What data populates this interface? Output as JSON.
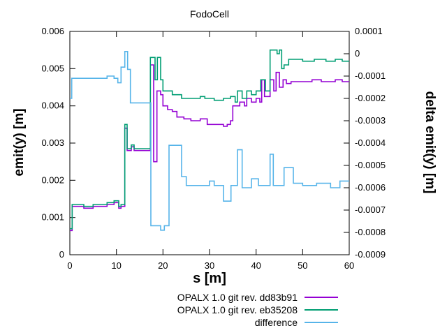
{
  "chart_data": {
    "type": "line",
    "title": "FodoCell",
    "xlabel": "s [m]",
    "ylabel_left": "emit(y) [m]",
    "ylabel_right": "delta emit(y) [m]",
    "x_range": [
      0,
      60
    ],
    "y_left_range": [
      0,
      0.006
    ],
    "y_right_range": [
      -0.0009,
      0.0001
    ],
    "grid": false,
    "legend_position": "bottom-center",
    "step_mode": "step-after",
    "x_tick_values": [
      0,
      10,
      20,
      30,
      40,
      50,
      60
    ],
    "x_tick_labels": [
      "0",
      "10",
      "20",
      "30",
      "40",
      "50",
      "60"
    ],
    "y_left_tick_values": [
      0,
      0.001,
      0.002,
      0.003,
      0.004,
      0.005,
      0.006
    ],
    "y_left_tick_labels": [
      "0",
      "0.001",
      "0.002",
      "0.003",
      "0.004",
      "0.005",
      "0.006"
    ],
    "y_right_tick_values": [
      0.0001,
      0,
      -0.0001,
      -0.0002,
      -0.0003,
      -0.0004,
      -0.0005,
      -0.0006,
      -0.0007,
      -0.0008,
      -0.0009
    ],
    "y_right_tick_labels": [
      "0.0001",
      "0",
      "-0.0001",
      "-0.0002",
      "-0.0003",
      "-0.0004",
      "-0.0005",
      "-0.0006",
      "-0.0007",
      "-0.0008",
      "-0.0009"
    ],
    "series": [
      {
        "name": "OPALX 1.0 git rev. dd83b91",
        "color": "#9400d3",
        "axis": "left",
        "points": [
          [
            0,
            0.00065
          ],
          [
            0.5,
            0.0013
          ],
          [
            3,
            0.00125
          ],
          [
            5,
            0.0013
          ],
          [
            8,
            0.00135
          ],
          [
            9.5,
            0.0014
          ],
          [
            10.5,
            0.00125
          ],
          [
            11,
            0.0013
          ],
          [
            11.8,
            0.0034
          ],
          [
            12.3,
            0.0028
          ],
          [
            13.2,
            0.0029
          ],
          [
            13.8,
            0.0028
          ],
          [
            17.3,
            0.0051
          ],
          [
            18,
            0.0025
          ],
          [
            18.7,
            0.0044
          ],
          [
            19.5,
            0.0043
          ],
          [
            20,
            0.004
          ],
          [
            21,
            0.0039
          ],
          [
            22,
            0.00385
          ],
          [
            23,
            0.0037
          ],
          [
            24.5,
            0.00365
          ],
          [
            26,
            0.0036
          ],
          [
            28,
            0.00365
          ],
          [
            29.5,
            0.0035
          ],
          [
            33,
            0.00345
          ],
          [
            33.8,
            0.0035
          ],
          [
            34.5,
            0.0036
          ],
          [
            35,
            0.004
          ],
          [
            36.5,
            0.0041
          ],
          [
            37.5,
            0.004
          ],
          [
            38,
            0.0042
          ],
          [
            39,
            0.0041
          ],
          [
            40,
            0.0042
          ],
          [
            40.8,
            0.0041
          ],
          [
            41.2,
            0.0047
          ],
          [
            41.8,
            0.00425
          ],
          [
            43,
            0.0047
          ],
          [
            43.8,
            0.0044
          ],
          [
            44.3,
            0.0049
          ],
          [
            45,
            0.0045
          ],
          [
            45.8,
            0.0047
          ],
          [
            46.5,
            0.0046
          ],
          [
            47.5,
            0.00465
          ],
          [
            52,
            0.0047
          ],
          [
            54,
            0.00465
          ],
          [
            57,
            0.0047
          ],
          [
            58.5,
            0.00465
          ]
        ]
      },
      {
        "name": "OPALX 1.0 git rev. eb35208",
        "color": "#009e73",
        "axis": "left",
        "points": [
          [
            0,
            0.0007
          ],
          [
            0.5,
            0.00135
          ],
          [
            3,
            0.0013
          ],
          [
            5,
            0.00135
          ],
          [
            8,
            0.0014
          ],
          [
            9.5,
            0.00145
          ],
          [
            10.5,
            0.0013
          ],
          [
            11,
            0.00135
          ],
          [
            11.8,
            0.0035
          ],
          [
            12.3,
            0.00285
          ],
          [
            13.2,
            0.00295
          ],
          [
            13.8,
            0.00285
          ],
          [
            17.3,
            0.0053
          ],
          [
            18.3,
            0.0047
          ],
          [
            18.8,
            0.0053
          ],
          [
            19.5,
            0.0047
          ],
          [
            20,
            0.0044
          ],
          [
            22,
            0.0043
          ],
          [
            24,
            0.0042
          ],
          [
            28,
            0.00425
          ],
          [
            29,
            0.0042
          ],
          [
            31,
            0.00415
          ],
          [
            33,
            0.0042
          ],
          [
            34.5,
            0.00425
          ],
          [
            35.5,
            0.0041
          ],
          [
            36,
            0.0044
          ],
          [
            37,
            0.0042
          ],
          [
            38,
            0.0044
          ],
          [
            39,
            0.0043
          ],
          [
            40,
            0.0044
          ],
          [
            41,
            0.0047
          ],
          [
            42,
            0.0044
          ],
          [
            43,
            0.0055
          ],
          [
            44.5,
            0.0054
          ],
          [
            45,
            0.0055
          ],
          [
            45.5,
            0.005
          ],
          [
            46,
            0.0051
          ],
          [
            47,
            0.00525
          ],
          [
            50,
            0.0052
          ],
          [
            52.5,
            0.00525
          ],
          [
            55,
            0.0052
          ],
          [
            57,
            0.00525
          ],
          [
            58.5,
            0.0052
          ]
        ]
      },
      {
        "name": "difference",
        "color": "#56b4e9",
        "axis": "right",
        "points": [
          [
            0,
            -0.0002
          ],
          [
            0.4,
            -0.00011
          ],
          [
            2,
            -0.00011
          ],
          [
            8,
            -0.0001
          ],
          [
            9.5,
            -0.00011
          ],
          [
            10.3,
            -0.00013
          ],
          [
            11,
            -6e-05
          ],
          [
            11.8,
            1e-05
          ],
          [
            12.4,
            -7e-05
          ],
          [
            13,
            -0.00022
          ],
          [
            17.4,
            -0.00077
          ],
          [
            19.5,
            -0.00079
          ],
          [
            20.3,
            -0.00077
          ],
          [
            21.3,
            -0.00041
          ],
          [
            24,
            -0.00055
          ],
          [
            25,
            -0.00059
          ],
          [
            30,
            -0.00057
          ],
          [
            31,
            -0.00059
          ],
          [
            33,
            -0.00066
          ],
          [
            34.6,
            -0.00059
          ],
          [
            36,
            -0.00043
          ],
          [
            37,
            -0.0006
          ],
          [
            39,
            -0.00056
          ],
          [
            40.5,
            -0.00059
          ],
          [
            43,
            -0.00045
          ],
          [
            43.7,
            -0.00059
          ],
          [
            46,
            -0.00051
          ],
          [
            48,
            -0.00058
          ],
          [
            50,
            -0.00059
          ],
          [
            53,
            -0.00058
          ],
          [
            56,
            -0.0006
          ],
          [
            58,
            -0.00057
          ]
        ]
      }
    ]
  }
}
